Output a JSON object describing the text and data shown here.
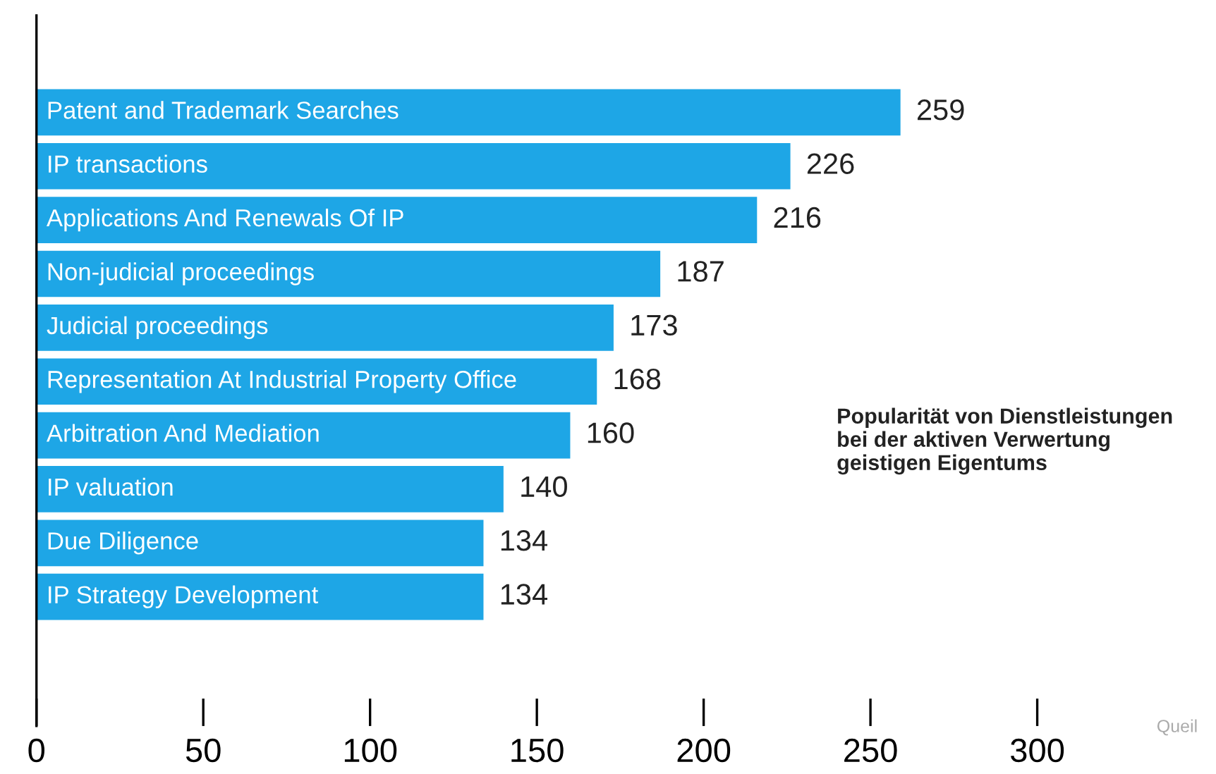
{
  "chart_data": {
    "type": "bar",
    "orientation": "horizontal",
    "categories": [
      "Patent and Trademark Searches",
      "IP transactions",
      "Applications And Renewals Of IP",
      "Non-judicial proceedings",
      "Judicial proceedings",
      "Representation At Industrial Property Office",
      "Arbitration And Mediation",
      "IP valuation",
      "Due Diligence",
      "IP Strategy Development"
    ],
    "values": [
      259,
      226,
      216,
      187,
      173,
      168,
      160,
      140,
      134,
      134
    ],
    "color": "#1ea6e6",
    "xlim": [
      0,
      300
    ],
    "xticks": [
      0,
      50,
      100,
      150,
      200,
      250,
      300
    ],
    "data_labels": true,
    "grid": false,
    "legend": false,
    "annotations": [
      "Popularität von Dienstleistungen\nbei der aktiven Verwertung\ngeistigen Eigentums",
      "Queil"
    ]
  }
}
